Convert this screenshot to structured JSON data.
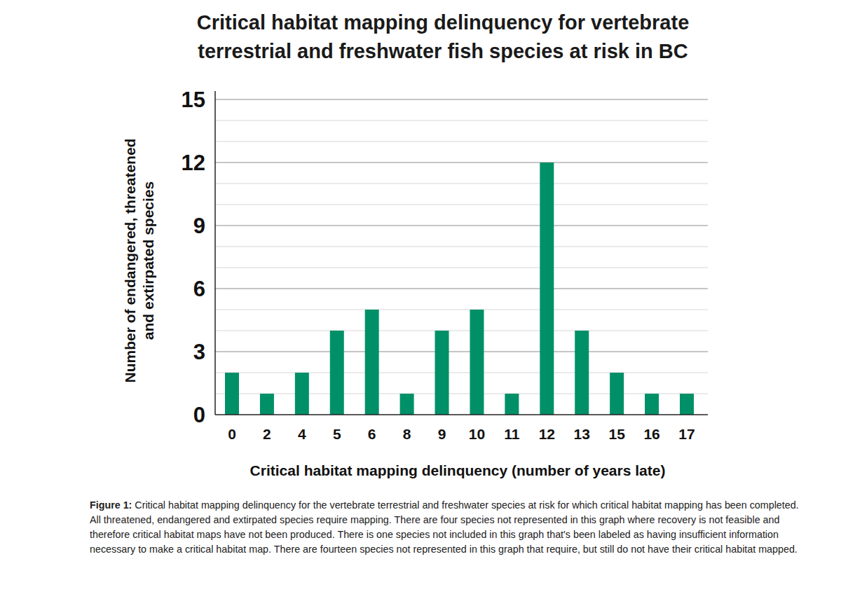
{
  "chart_data": {
    "type": "bar",
    "title": [
      "Critical habitat mapping delinquency for vertebrate",
      "terrestrial and freshwater fish species at risk in BC"
    ],
    "y_label": [
      "Number of endangered, threatened",
      "and extirpated species"
    ],
    "x_label": "Critical habitat mapping delinquency (number of years late)",
    "categories": [
      "0",
      "2",
      "4",
      "5",
      "6",
      "8",
      "9",
      "10",
      "11",
      "12",
      "13",
      "15",
      "16",
      "17"
    ],
    "values": [
      2,
      1,
      2,
      4,
      5,
      1,
      4,
      5,
      1,
      12,
      4,
      2,
      1,
      1
    ],
    "color": "#009068",
    "ylim": [
      0,
      15
    ],
    "yticks": [
      0,
      3,
      6,
      9,
      12,
      15
    ],
    "grid": true,
    "caption": {
      "label": "Figure 1:",
      "text": "Critical habitat mapping delinquency for the vertebrate terrestrial and freshwater species at risk for which critical habitat mapping has been completed. All threatened, endangered and extirpated species require mapping. There are four species not represented in this graph where recovery is not feasible and therefore critical habitat maps have not been produced. There is one species not included in this graph that's been labeled as having insufficient information necessary to make a critical habitat map. There are fourteen species not represented in this graph that require, but still do not have their critical habitat mapped."
    }
  }
}
